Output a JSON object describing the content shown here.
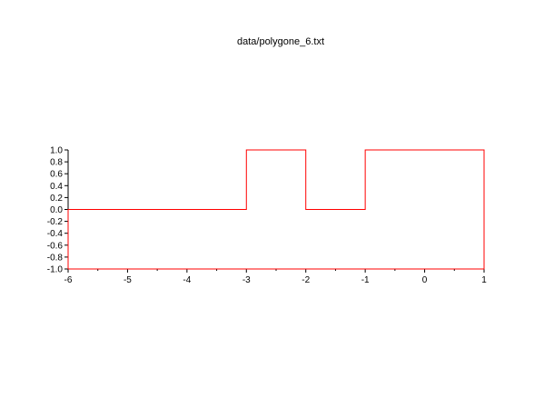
{
  "chart_data": {
    "type": "line",
    "title": "data/polygone_6.txt",
    "xlabel": "",
    "ylabel": "",
    "xlim": [
      -6,
      1
    ],
    "ylim": [
      -1.0,
      1.0
    ],
    "grid": false,
    "x_ticks": [
      "-6",
      "-5",
      "-4",
      "-3",
      "-2",
      "-1",
      "0",
      "1"
    ],
    "y_ticks": [
      "-1.0",
      "-0.8",
      "-0.6",
      "-0.4",
      "-0.2",
      "0.0",
      "0.2",
      "0.4",
      "0.6",
      "0.8",
      "1.0"
    ],
    "series": [
      {
        "color": "#ff0000",
        "points": [
          [
            -6,
            -1
          ],
          [
            -6,
            0
          ],
          [
            -3,
            0
          ],
          [
            -3,
            1
          ],
          [
            -2,
            1
          ],
          [
            -2,
            0
          ],
          [
            -1,
            0
          ],
          [
            -1,
            1
          ],
          [
            1,
            1
          ],
          [
            1,
            -1
          ],
          [
            -6,
            -1
          ]
        ]
      }
    ]
  }
}
